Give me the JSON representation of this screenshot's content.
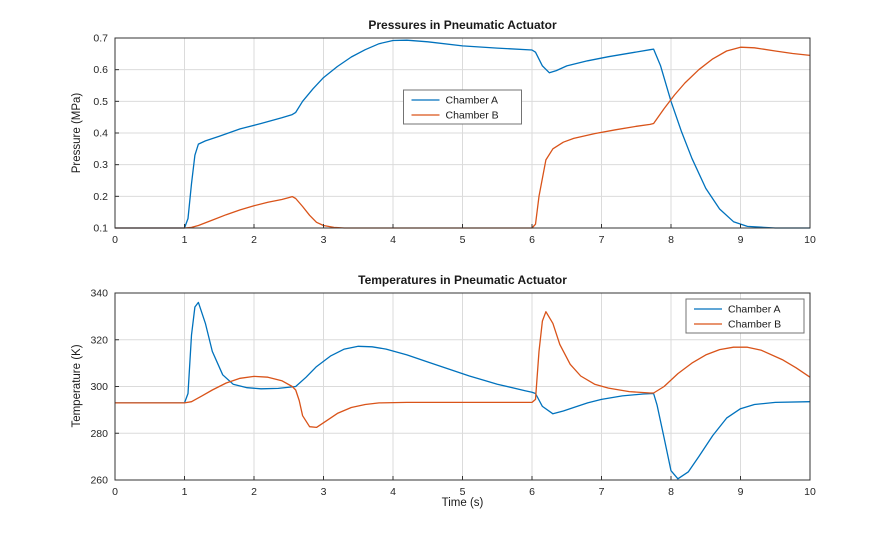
{
  "figure": {
    "background": "#ffffff",
    "axis_color": "#333333",
    "grid_color": "#DBDBDB",
    "tick_label_color": "#262626",
    "legend_border_color": "#737373",
    "series_colors": {
      "chamber_a": "#0072BD",
      "chamber_b": "#D95319"
    }
  },
  "chart_data": [
    {
      "type": "line",
      "title": "Pressures in Pneumatic Actuator",
      "xlabel": "",
      "ylabel": "Pressure (MPa)",
      "xlim": [
        0,
        10
      ],
      "ylim": [
        0.1,
        0.7
      ],
      "xtick_labels": [
        "0",
        "1",
        "2",
        "3",
        "4",
        "5",
        "6",
        "7",
        "8",
        "9",
        "10"
      ],
      "ytick_labels": [
        "0.1",
        "0.2",
        "0.3",
        "0.4",
        "0.5",
        "0.6",
        "0.7"
      ],
      "grid": true,
      "legend": {
        "entries": [
          "Chamber A",
          "Chamber B"
        ],
        "position": "upper-center"
      },
      "series": [
        {
          "name": "Chamber A",
          "color": "#0072BD",
          "x": [
            0,
            0.5,
            1.0,
            1.05,
            1.1,
            1.15,
            1.2,
            1.3,
            1.5,
            1.8,
            2.1,
            2.4,
            2.55,
            2.6,
            2.7,
            2.85,
            3.0,
            3.2,
            3.4,
            3.6,
            3.8,
            4.0,
            4.2,
            4.5,
            5.0,
            5.5,
            6.0,
            6.05,
            6.15,
            6.25,
            6.35,
            6.5,
            6.8,
            7.1,
            7.4,
            7.7,
            7.75,
            7.85,
            8.0,
            8.15,
            8.3,
            8.5,
            8.7,
            8.9,
            9.1,
            9.5,
            10
          ],
          "y": [
            0.1,
            0.1,
            0.1,
            0.13,
            0.24,
            0.33,
            0.365,
            0.375,
            0.39,
            0.413,
            0.43,
            0.448,
            0.458,
            0.465,
            0.5,
            0.54,
            0.575,
            0.61,
            0.64,
            0.663,
            0.682,
            0.692,
            0.693,
            0.688,
            0.675,
            0.668,
            0.662,
            0.655,
            0.612,
            0.59,
            0.597,
            0.612,
            0.628,
            0.641,
            0.652,
            0.663,
            0.665,
            0.612,
            0.5,
            0.405,
            0.32,
            0.225,
            0.16,
            0.12,
            0.105,
            0.1,
            0.1
          ]
        },
        {
          "name": "Chamber B",
          "color": "#D95319",
          "x": [
            0,
            0.5,
            1.0,
            1.1,
            1.2,
            1.4,
            1.6,
            1.8,
            2.0,
            2.2,
            2.4,
            2.5,
            2.55,
            2.6,
            2.7,
            2.8,
            2.9,
            3.0,
            3.15,
            3.3,
            4.0,
            5.0,
            6.0,
            6.05,
            6.1,
            6.2,
            6.3,
            6.45,
            6.6,
            6.9,
            7.2,
            7.5,
            7.7,
            7.75,
            7.9,
            8.05,
            8.2,
            8.4,
            8.6,
            8.8,
            9.0,
            9.2,
            9.5,
            9.75,
            10
          ],
          "y": [
            0.1,
            0.1,
            0.1,
            0.102,
            0.108,
            0.125,
            0.142,
            0.157,
            0.17,
            0.181,
            0.19,
            0.196,
            0.199,
            0.193,
            0.168,
            0.14,
            0.118,
            0.108,
            0.102,
            0.1,
            0.1,
            0.1,
            0.1,
            0.112,
            0.2,
            0.315,
            0.35,
            0.371,
            0.383,
            0.398,
            0.41,
            0.421,
            0.427,
            0.43,
            0.477,
            0.52,
            0.558,
            0.6,
            0.634,
            0.659,
            0.671,
            0.669,
            0.659,
            0.651,
            0.645
          ]
        }
      ]
    },
    {
      "type": "line",
      "title": "Temperatures in Pneumatic Actuator",
      "xlabel": "Time (s)",
      "ylabel": "Temperature (K)",
      "xlim": [
        0,
        10
      ],
      "ylim": [
        260,
        340
      ],
      "xtick_labels": [
        "0",
        "1",
        "2",
        "3",
        "4",
        "5",
        "6",
        "7",
        "8",
        "9",
        "10"
      ],
      "ytick_labels": [
        "260",
        "280",
        "300",
        "320",
        "340"
      ],
      "grid": true,
      "legend": {
        "entries": [
          "Chamber A",
          "Chamber B"
        ],
        "position": "northeast"
      },
      "series": [
        {
          "name": "Chamber A",
          "color": "#0072BD",
          "x": [
            0,
            0.5,
            1.0,
            1.05,
            1.1,
            1.15,
            1.2,
            1.3,
            1.4,
            1.55,
            1.7,
            1.9,
            2.1,
            2.35,
            2.6,
            2.75,
            2.9,
            3.1,
            3.3,
            3.5,
            3.7,
            3.9,
            4.2,
            4.5,
            4.8,
            5.1,
            5.5,
            5.9,
            6.0,
            6.05,
            6.15,
            6.3,
            6.45,
            6.6,
            6.8,
            7.0,
            7.3,
            7.6,
            7.75,
            7.8,
            7.9,
            8.0,
            8.1,
            8.25,
            8.4,
            8.6,
            8.8,
            9.0,
            9.2,
            9.5,
            10
          ],
          "y": [
            293,
            293,
            293,
            297,
            322,
            334,
            336,
            327,
            315,
            305,
            301,
            299.5,
            299,
            299.2,
            300,
            304,
            308.5,
            313,
            316,
            317.2,
            317,
            316,
            313.5,
            310.5,
            307.5,
            304.5,
            301,
            298.2,
            297.5,
            297,
            291.5,
            288.3,
            289.5,
            291,
            293,
            294.5,
            296,
            296.8,
            297,
            292,
            278,
            264,
            260.5,
            263.5,
            270,
            279,
            286.5,
            290.5,
            292.3,
            293.2,
            293.5
          ]
        },
        {
          "name": "Chamber B",
          "color": "#D95319",
          "x": [
            0,
            0.5,
            1.0,
            1.1,
            1.25,
            1.4,
            1.6,
            1.8,
            2.0,
            2.2,
            2.4,
            2.55,
            2.6,
            2.65,
            2.7,
            2.8,
            2.9,
            3.05,
            3.2,
            3.4,
            3.6,
            3.8,
            4.2,
            5.0,
            5.8,
            6.0,
            6.05,
            6.1,
            6.15,
            6.2,
            6.3,
            6.4,
            6.55,
            6.7,
            6.9,
            7.1,
            7.4,
            7.7,
            7.75,
            7.9,
            8.1,
            8.3,
            8.5,
            8.7,
            8.9,
            9.1,
            9.3,
            9.6,
            9.8,
            10
          ],
          "y": [
            293,
            293,
            293,
            293.5,
            296,
            298.5,
            301.5,
            303.5,
            304.3,
            304,
            302.5,
            300,
            298.5,
            294,
            287.5,
            282.8,
            282.5,
            285.5,
            288.5,
            291,
            292.3,
            293,
            293.2,
            293.2,
            293.2,
            293.2,
            294.5,
            315,
            328,
            332,
            327,
            318,
            309.5,
            304.5,
            301,
            299.3,
            297.8,
            297.2,
            297.2,
            300,
            305.5,
            310,
            313.5,
            315.8,
            316.8,
            316.8,
            315.5,
            311.5,
            308,
            304
          ]
        }
      ]
    }
  ]
}
